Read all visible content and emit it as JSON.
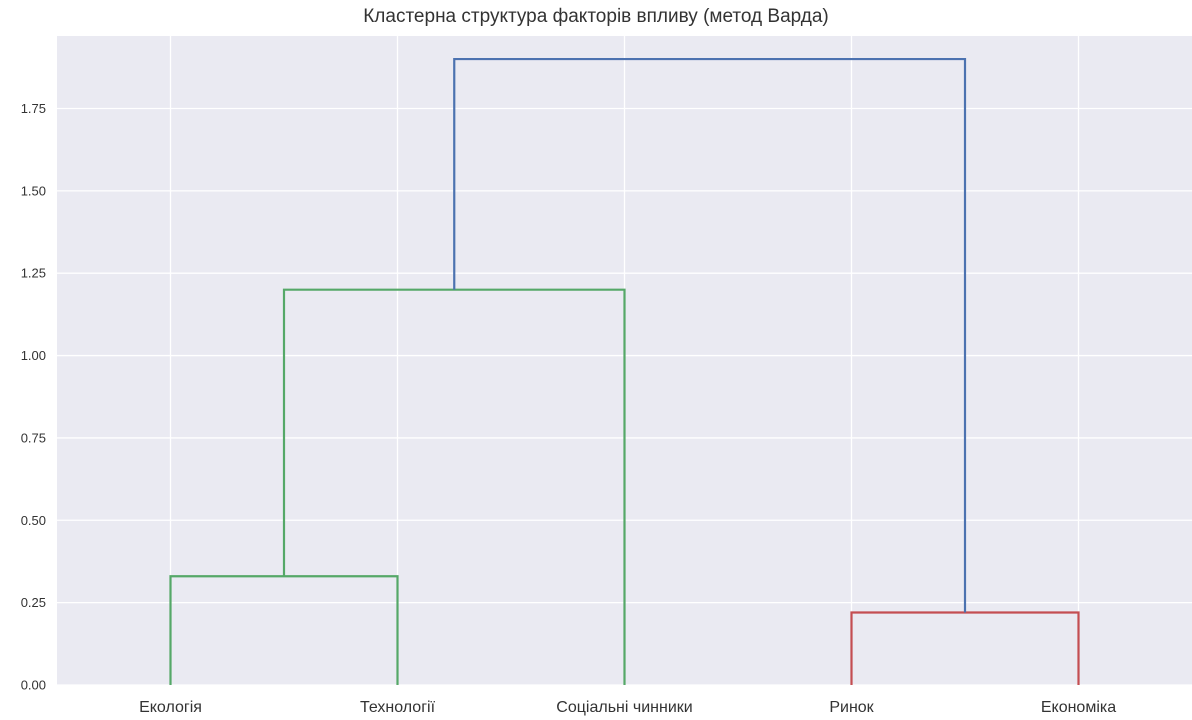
{
  "chart_data": {
    "type": "dendrogram",
    "title": "Кластерна структура факторів впливу (метод Варда)",
    "xlabel": "",
    "ylabel": "",
    "ylim": [
      0,
      1.97
    ],
    "yticks": [
      "0.00",
      "0.25",
      "0.50",
      "0.75",
      "1.00",
      "1.25",
      "1.50",
      "1.75"
    ],
    "grid": true,
    "background": "#eaeaf2",
    "leaves": [
      "Екологія",
      "Технології",
      "Соціальні чинники",
      "Ринок",
      "Економіка"
    ],
    "merges": [
      {
        "left": "Екологія",
        "right": "Технології",
        "height": 0.33,
        "color": "#55a868"
      },
      {
        "left": "Ринок",
        "right": "Економіка",
        "height": 0.22,
        "color": "#c44e52"
      },
      {
        "left": "Екологія + Технології",
        "right": "Соціальні чинники",
        "height": 1.2,
        "color": "#55a868"
      },
      {
        "left": "Екологія + Технології + Соціальні чинники",
        "right": "Ринок + Економіка",
        "height": 1.9,
        "color": "#4c72b0"
      }
    ]
  }
}
